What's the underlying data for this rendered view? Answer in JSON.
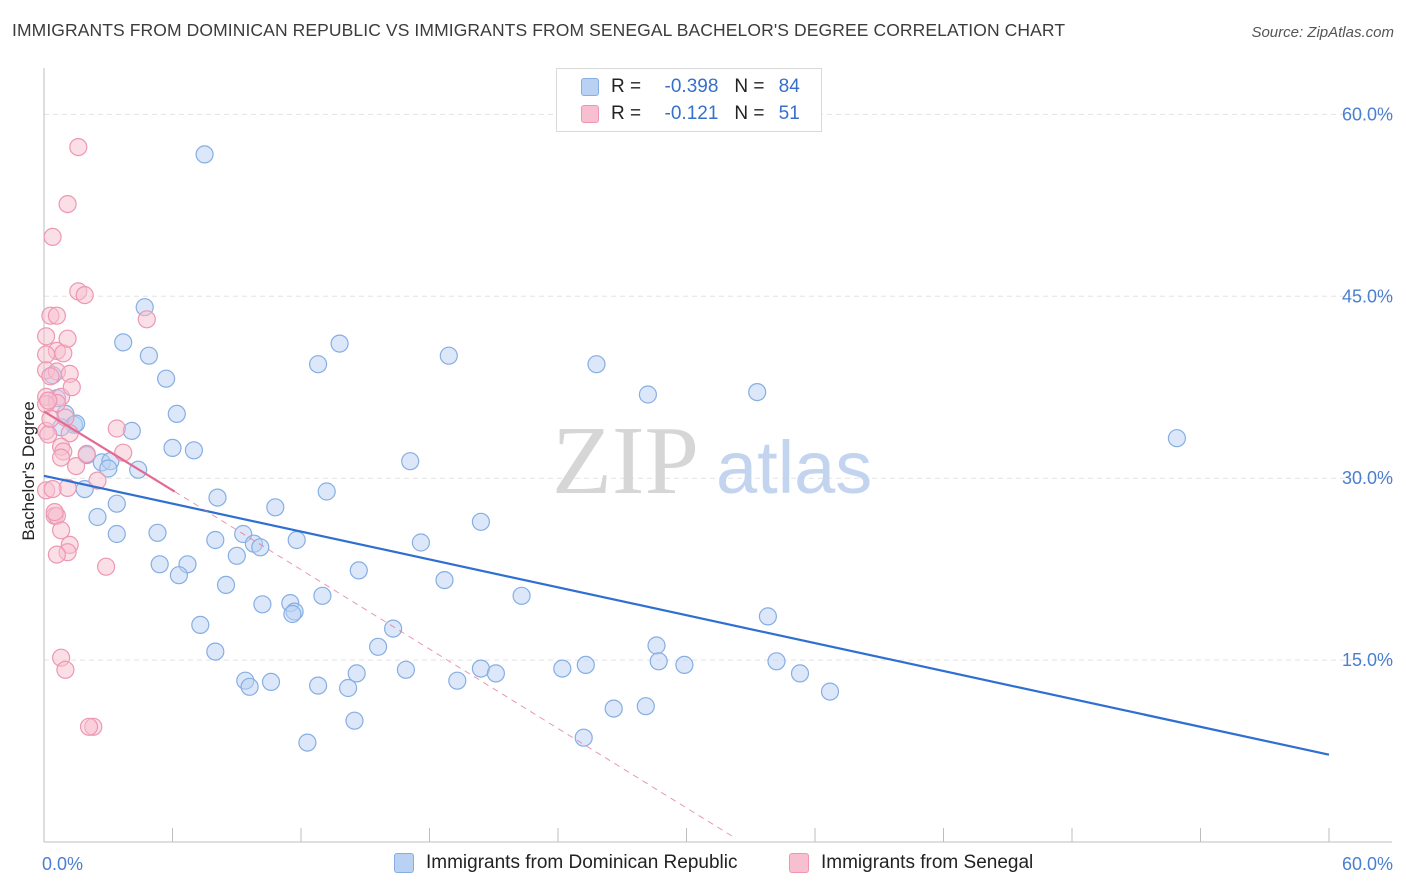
{
  "title": "IMMIGRANTS FROM DOMINICAN REPUBLIC VS IMMIGRANTS FROM SENEGAL BACHELOR'S DEGREE CORRELATION CHART",
  "source": "Source: ZipAtlas.com",
  "watermark": {
    "zip": "ZIP",
    "atlas": "atlas"
  },
  "legend": {
    "rows": [
      {
        "r_label": "R =",
        "r_value": "-0.398",
        "n_label": "N =",
        "n_value": "84"
      },
      {
        "r_label": "R =",
        "r_value": "-0.121",
        "n_label": "N =",
        "n_value": "51"
      }
    ]
  },
  "colors": {
    "blue_fill": "#b9d1f3",
    "blue_stroke": "#86aee3",
    "blue_line": "#2f6fd1",
    "pink_fill": "#f7bfd0",
    "pink_stroke": "#ee97b3",
    "pink_line": "#e36a93",
    "axis_tick_text": "#4a7fd0",
    "grid": "#e3e3e3"
  },
  "chart_data": {
    "type": "scatter",
    "title": "IMMIGRANTS FROM DOMINICAN REPUBLIC VS IMMIGRANTS FROM SENEGAL BACHELOR'S DEGREE CORRELATION CHART",
    "xlabel": "",
    "ylabel": "Bachelor's Degree",
    "xlim": [
      0,
      60
    ],
    "ylim": [
      0,
      63
    ],
    "x_tick_labels": [
      "0.0%",
      "60.0%"
    ],
    "y_ticks": [
      15,
      30,
      45,
      60
    ],
    "y_tick_labels": [
      "15.0%",
      "30.0%",
      "45.0%",
      "60.0%"
    ],
    "grid": true,
    "legend_position": "bottom",
    "series": [
      {
        "name": "Immigrants from Dominican Republic",
        "color": "#b9d1f3",
        "R": -0.398,
        "N": 84,
        "trend": {
          "x": [
            0,
            60
          ],
          "y": [
            30.2,
            7.2
          ]
        },
        "points": [
          [
            7.5,
            56.7
          ],
          [
            4.7,
            44.1
          ],
          [
            3.7,
            41.2
          ],
          [
            4.9,
            40.1
          ],
          [
            13.8,
            41.1
          ],
          [
            12.8,
            39.4
          ],
          [
            18.9,
            40.1
          ],
          [
            25.8,
            39.4
          ],
          [
            5.7,
            38.2
          ],
          [
            28.2,
            36.9
          ],
          [
            33.3,
            37.1
          ],
          [
            52.9,
            33.3
          ],
          [
            0.4,
            38.5
          ],
          [
            0.6,
            36.6
          ],
          [
            1.0,
            35.3
          ],
          [
            6.2,
            35.3
          ],
          [
            1.4,
            34.4
          ],
          [
            4.1,
            33.9
          ],
          [
            0.8,
            34.2
          ],
          [
            6.0,
            32.5
          ],
          [
            7.0,
            32.3
          ],
          [
            17.1,
            31.4
          ],
          [
            2.0,
            31.9
          ],
          [
            2.7,
            31.3
          ],
          [
            3.1,
            31.4
          ],
          [
            4.4,
            30.7
          ],
          [
            1.9,
            29.1
          ],
          [
            13.2,
            28.9
          ],
          [
            8.1,
            28.4
          ],
          [
            3.4,
            27.9
          ],
          [
            10.8,
            27.6
          ],
          [
            20.4,
            26.4
          ],
          [
            2.5,
            26.8
          ],
          [
            3.4,
            25.4
          ],
          [
            5.3,
            25.5
          ],
          [
            9.3,
            25.4
          ],
          [
            8.0,
            24.9
          ],
          [
            9.8,
            24.6
          ],
          [
            11.8,
            24.9
          ],
          [
            17.6,
            24.7
          ],
          [
            10.1,
            24.3
          ],
          [
            9.0,
            23.6
          ],
          [
            5.4,
            22.9
          ],
          [
            6.7,
            22.9
          ],
          [
            6.3,
            22.0
          ],
          [
            14.7,
            22.4
          ],
          [
            18.7,
            21.6
          ],
          [
            8.5,
            21.2
          ],
          [
            13.0,
            20.3
          ],
          [
            22.3,
            20.3
          ],
          [
            10.2,
            19.6
          ],
          [
            11.5,
            19.7
          ],
          [
            11.7,
            19.0
          ],
          [
            11.6,
            18.8
          ],
          [
            33.8,
            18.6
          ],
          [
            7.3,
            17.9
          ],
          [
            16.3,
            17.6
          ],
          [
            8.0,
            15.7
          ],
          [
            15.6,
            16.1
          ],
          [
            28.6,
            16.2
          ],
          [
            25.3,
            14.6
          ],
          [
            28.7,
            14.9
          ],
          [
            34.2,
            14.9
          ],
          [
            29.9,
            14.6
          ],
          [
            14.6,
            13.9
          ],
          [
            16.9,
            14.2
          ],
          [
            20.4,
            14.3
          ],
          [
            21.1,
            13.9
          ],
          [
            24.2,
            14.3
          ],
          [
            35.3,
            13.9
          ],
          [
            9.4,
            13.3
          ],
          [
            10.6,
            13.2
          ],
          [
            19.3,
            13.3
          ],
          [
            9.6,
            12.8
          ],
          [
            12.8,
            12.9
          ],
          [
            14.2,
            12.7
          ],
          [
            36.7,
            12.4
          ],
          [
            26.6,
            11.0
          ],
          [
            28.1,
            11.2
          ],
          [
            14.5,
            10.0
          ],
          [
            12.3,
            8.2
          ],
          [
            25.2,
            8.6
          ],
          [
            3.0,
            30.8
          ],
          [
            1.5,
            34.5
          ]
        ]
      },
      {
        "name": "Immigrants from Senegal",
        "color": "#f7bfd0",
        "R": -0.121,
        "N": 51,
        "trend": {
          "x": [
            0,
            6.1
          ],
          "y": [
            35.5,
            28.9
          ]
        },
        "trend_extension": {
          "x": [
            6.1,
            32.3
          ],
          "y": [
            28.9,
            0.3
          ]
        },
        "points": [
          [
            1.6,
            57.3
          ],
          [
            1.1,
            52.6
          ],
          [
            0.4,
            49.9
          ],
          [
            1.6,
            45.4
          ],
          [
            1.9,
            45.1
          ],
          [
            4.8,
            43.1
          ],
          [
            0.3,
            43.4
          ],
          [
            0.6,
            43.4
          ],
          [
            0.1,
            41.7
          ],
          [
            0.6,
            40.5
          ],
          [
            0.9,
            40.3
          ],
          [
            1.1,
            41.5
          ],
          [
            0.1,
            40.2
          ],
          [
            0.1,
            38.9
          ],
          [
            0.6,
            38.8
          ],
          [
            1.2,
            38.6
          ],
          [
            0.3,
            38.4
          ],
          [
            0.1,
            36.7
          ],
          [
            0.8,
            36.7
          ],
          [
            1.3,
            37.5
          ],
          [
            0.6,
            36.2
          ],
          [
            1.0,
            35.0
          ],
          [
            0.1,
            36.1
          ],
          [
            0.1,
            33.9
          ],
          [
            0.2,
            33.6
          ],
          [
            1.2,
            33.7
          ],
          [
            3.4,
            34.1
          ],
          [
            3.7,
            32.1
          ],
          [
            0.8,
            32.6
          ],
          [
            0.9,
            32.2
          ],
          [
            0.8,
            31.7
          ],
          [
            1.5,
            31.0
          ],
          [
            2.0,
            32.0
          ],
          [
            2.5,
            29.8
          ],
          [
            0.1,
            29.0
          ],
          [
            1.1,
            29.2
          ],
          [
            0.4,
            29.1
          ],
          [
            0.5,
            26.9
          ],
          [
            0.6,
            26.9
          ],
          [
            0.8,
            25.7
          ],
          [
            1.2,
            24.5
          ],
          [
            1.1,
            23.9
          ],
          [
            0.6,
            23.7
          ],
          [
            2.9,
            22.7
          ],
          [
            0.8,
            15.2
          ],
          [
            1.0,
            14.2
          ],
          [
            2.3,
            9.5
          ],
          [
            2.1,
            9.5
          ],
          [
            0.3,
            34.9
          ],
          [
            0.5,
            27.2
          ],
          [
            0.2,
            36.4
          ]
        ]
      }
    ]
  }
}
